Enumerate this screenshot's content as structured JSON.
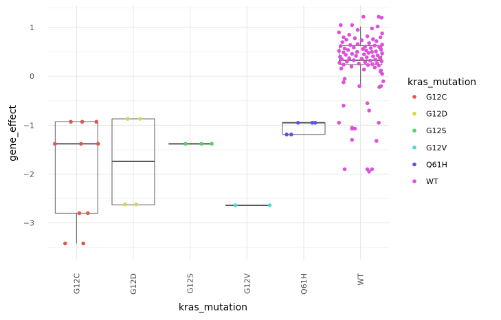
{
  "chart_data": {
    "type": "box",
    "xlabel": "kras_mutation",
    "ylabel": "gene_effect",
    "categories": [
      "G12C",
      "G12D",
      "G12S",
      "G12V",
      "Q61H",
      "WT"
    ],
    "ylim": [
      -3.75,
      1.45
    ],
    "yticks": [
      1,
      0,
      -1,
      -2,
      -3
    ],
    "grid": true,
    "legend": {
      "title": "kras_mutation",
      "position": "right",
      "entries": [
        {
          "label": "G12C",
          "color": "#e0584d"
        },
        {
          "label": "G12D",
          "color": "#d4d84a"
        },
        {
          "label": "G12S",
          "color": "#4fd860"
        },
        {
          "label": "G12V",
          "color": "#4fd8d0"
        },
        {
          "label": "Q61H",
          "color": "#5a55e0"
        },
        {
          "label": "WT",
          "color": "#de50d8"
        }
      ]
    },
    "boxes": [
      {
        "category": "G12C",
        "q1": -2.8,
        "median": -1.38,
        "q3": -0.93,
        "whisker_low": -3.42,
        "whisker_high": -0.93
      },
      {
        "category": "G12D",
        "q1": -2.63,
        "median": -1.74,
        "q3": -0.87,
        "whisker_low": -2.63,
        "whisker_high": -0.87
      },
      {
        "category": "G12S",
        "q1": -1.38,
        "median": -1.38,
        "q3": -1.38,
        "whisker_low": -1.38,
        "whisker_high": -1.38
      },
      {
        "category": "G12V",
        "q1": -2.64,
        "median": -2.64,
        "q3": -2.64,
        "whisker_low": -2.64,
        "whisker_high": -2.64
      },
      {
        "category": "Q61H",
        "q1": -1.19,
        "median": -0.95,
        "q3": -0.95,
        "whisker_low": -1.19,
        "whisker_high": -0.95
      },
      {
        "category": "WT",
        "q1": 0.24,
        "median": 0.33,
        "q3": 0.63,
        "whisker_low": -0.19,
        "whisker_high": 1.02
      }
    ],
    "points": [
      {
        "category": "G12C",
        "values": [
          -0.93,
          -0.93,
          -0.93,
          -1.38,
          -1.38,
          -1.38,
          -2.8,
          -2.8,
          -3.42,
          -3.42
        ],
        "jitter": [
          -0.1,
          0.1,
          0.35,
          -0.38,
          0.08,
          0.38,
          0.05,
          0.2,
          -0.2,
          0.12
        ]
      },
      {
        "category": "G12D",
        "values": [
          -0.87,
          -0.87,
          -2.62,
          -2.62
        ],
        "jitter": [
          -0.1,
          0.12,
          -0.15,
          0.05
        ]
      },
      {
        "category": "G12S",
        "values": [
          -1.38,
          -1.38,
          -1.38
        ],
        "jitter": [
          -0.08,
          0.2,
          0.38
        ]
      },
      {
        "category": "G12V",
        "values": [
          -2.64,
          -2.64
        ],
        "jitter": [
          -0.2,
          0.4
        ]
      },
      {
        "category": "Q61H",
        "values": [
          -0.95,
          -0.95,
          -0.95,
          -1.19,
          -1.19
        ],
        "jitter": [
          -0.1,
          0.15,
          0.2,
          -0.3,
          -0.22
        ]
      },
      {
        "category": "WT",
        "values": [
          1.22,
          1.22,
          1.2,
          1.05,
          1.05,
          1.02,
          0.98,
          0.95,
          0.9,
          0.88,
          0.85,
          0.82,
          0.8,
          0.8,
          0.78,
          0.76,
          0.75,
          0.74,
          0.72,
          0.7,
          0.68,
          0.66,
          0.65,
          0.64,
          0.63,
          0.62,
          0.61,
          0.6,
          0.59,
          0.58,
          0.57,
          0.56,
          0.55,
          0.54,
          0.53,
          0.52,
          0.51,
          0.5,
          0.5,
          0.49,
          0.48,
          0.47,
          0.46,
          0.45,
          0.44,
          0.43,
          0.42,
          0.41,
          0.4,
          0.39,
          0.38,
          0.37,
          0.36,
          0.35,
          0.34,
          0.33,
          0.32,
          0.31,
          0.3,
          0.29,
          0.28,
          0.27,
          0.26,
          0.25,
          0.24,
          0.23,
          0.22,
          0.2,
          0.18,
          0.16,
          0.14,
          0.12,
          0.1,
          0.05,
          -0.05,
          -0.1,
          -0.12,
          -0.2,
          -0.2,
          -0.22,
          -0.55,
          -0.6,
          -0.7,
          -0.95,
          -0.95,
          -1.05,
          -1.07,
          -1.07,
          -1.3,
          -1.32,
          -1.9,
          -1.9,
          -1.9,
          -1.95
        ],
        "jitter": [
          0.05,
          0.32,
          0.37,
          -0.35,
          -0.15,
          0.3,
          0.2,
          -0.05,
          -0.38,
          0.38,
          -0.2,
          0.12,
          -0.3,
          0.35,
          -0.1,
          0.22,
          -0.25,
          0.02,
          0.28,
          -0.32,
          0.15,
          -0.05,
          0.38,
          -0.18,
          0.25,
          -0.35,
          0.08,
          0.33,
          -0.12,
          0.18,
          -0.28,
          0.04,
          0.36,
          -0.22,
          0.1,
          -0.38,
          0.27,
          -0.06,
          0.2,
          -0.3,
          0.14,
          0.38,
          -0.15,
          0.06,
          -0.26,
          0.3,
          -0.08,
          0.22,
          -0.36,
          0.11,
          0.34,
          -0.2,
          0.02,
          -0.33,
          0.26,
          -0.12,
          0.17,
          0.37,
          -0.24,
          0.08,
          -0.37,
          0.29,
          -0.03,
          0.21,
          -0.3,
          0.13,
          0.32,
          -0.16,
          0.25,
          -0.34,
          0.06,
          0.36,
          0.35,
          0.38,
          -0.28,
          0.4,
          -0.3,
          0.36,
          -0.02,
          0.33,
          0.12,
          -0.3,
          0.15,
          -0.38,
          0.32,
          -0.15,
          -0.1,
          -0.15,
          -0.15,
          0.28,
          -0.28,
          0.12,
          0.2,
          0.15
        ]
      }
    ]
  }
}
